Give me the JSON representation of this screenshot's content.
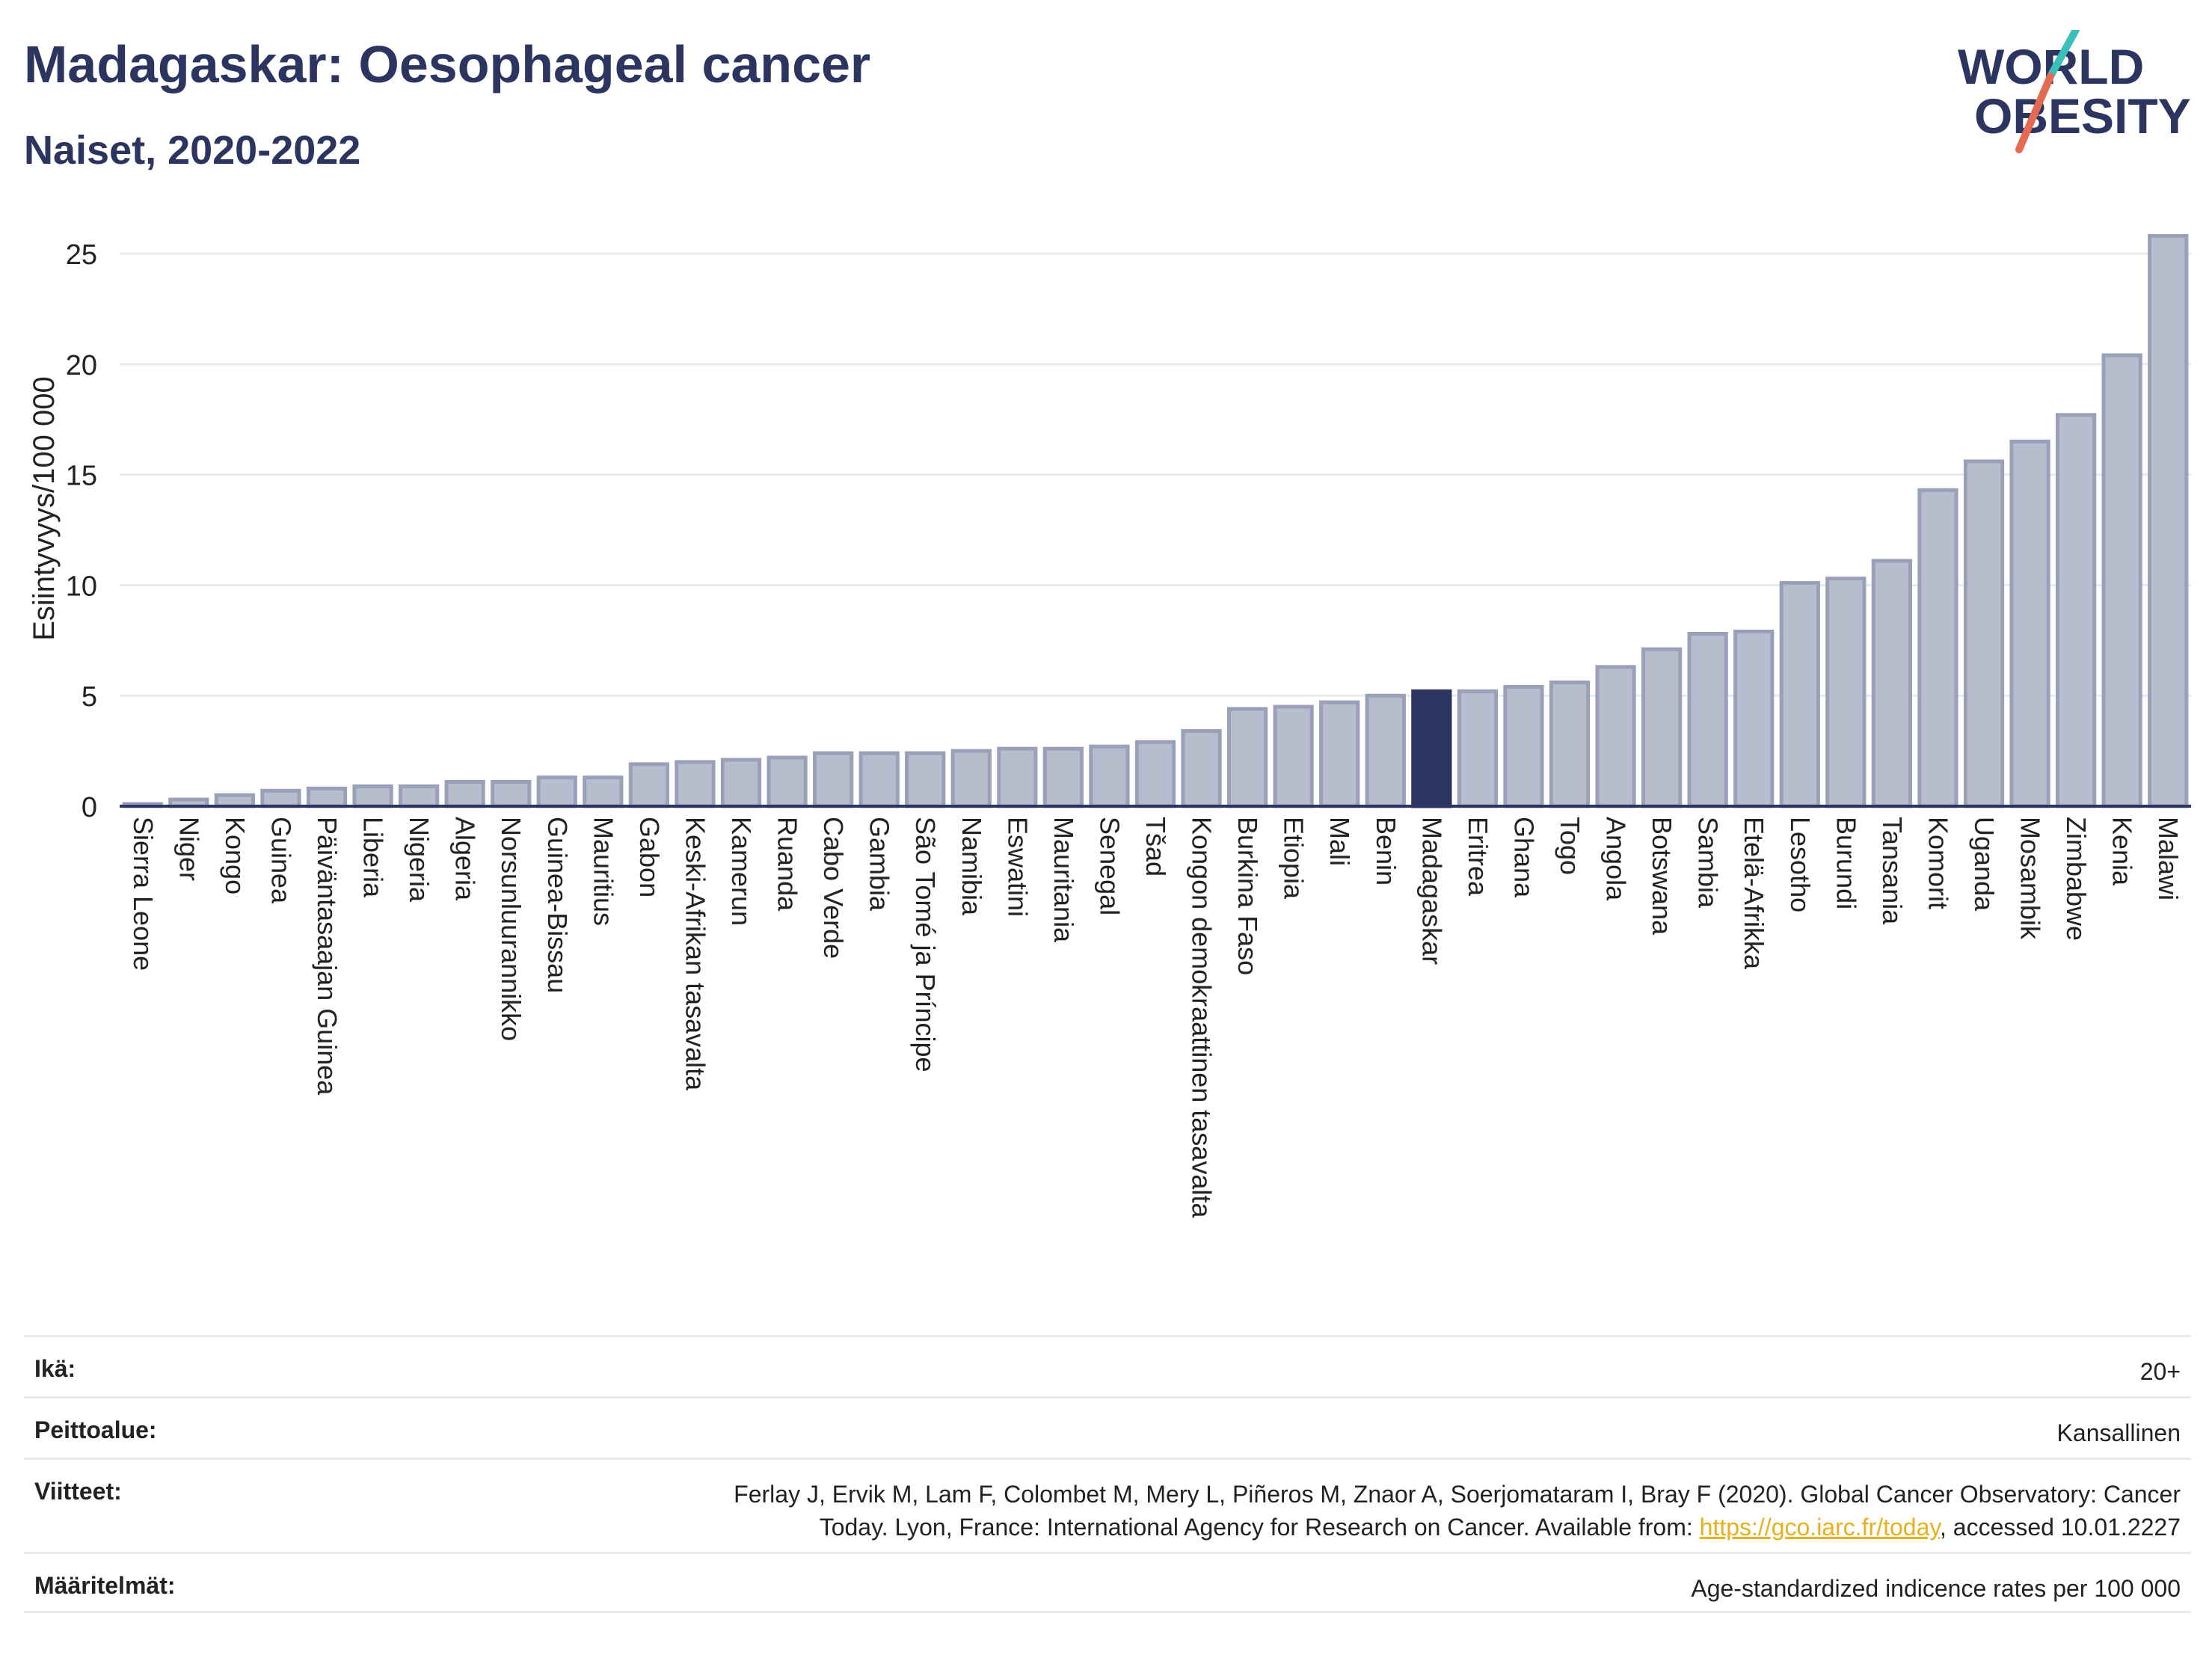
{
  "header": {
    "title": "Madagaskar: Oesophageal cancer",
    "subtitle": "Naiset, 2020-2022"
  },
  "logo": {
    "line1": "WORLD",
    "line2": "OBESITY",
    "colors": {
      "text": "#2c3560",
      "slash_teal": "#3cbfb9",
      "slash_coral": "#e56a54"
    }
  },
  "chart_data": {
    "type": "bar",
    "ylabel": "Esiintyvyys/100 000",
    "ylim": [
      0,
      27
    ],
    "yticks": [
      0,
      5,
      10,
      15,
      20,
      25
    ],
    "grid": true,
    "highlight": "Madagaskar",
    "colors": {
      "bar": "#b8bdcd",
      "bar_border": "#9aa0b8",
      "highlight": "#2c3560"
    },
    "categories": [
      "Sierra Leone",
      "Niger",
      "Kongo",
      "Guinea",
      "Päiväntasaajan Guinea",
      "Liberia",
      "Nigeria",
      "Algeria",
      "Norsunluurannikko",
      "Guinea-Bissau",
      "Mauritius",
      "Gabon",
      "Keski-Afrikan tasavalta",
      "Kamerun",
      "Ruanda",
      "Cabo Verde",
      "Gambia",
      "São Tomé ja Príncipe",
      "Namibia",
      "Eswatini",
      "Mauritania",
      "Senegal",
      "Tšad",
      "Kongon demokraattinen tasavalta",
      "Burkina Faso",
      "Etiopia",
      "Mali",
      "Benin",
      "Madagaskar",
      "Eritrea",
      "Ghana",
      "Togo",
      "Angola",
      "Botswana",
      "Sambia",
      "Etelä-Afrikka",
      "Lesotho",
      "Burundi",
      "Tansania",
      "Komorit",
      "Uganda",
      "Mosambik",
      "Zimbabwe",
      "Kenia",
      "Malawi"
    ],
    "values": [
      0.1,
      0.3,
      0.5,
      0.7,
      0.8,
      0.9,
      0.9,
      1.1,
      1.1,
      1.3,
      1.3,
      1.9,
      2.0,
      2.1,
      2.2,
      2.4,
      2.4,
      2.4,
      2.5,
      2.6,
      2.6,
      2.7,
      2.9,
      3.4,
      4.4,
      4.5,
      4.7,
      5.0,
      5.2,
      5.2,
      5.4,
      5.6,
      6.3,
      7.1,
      7.8,
      7.9,
      10.1,
      10.3,
      11.1,
      14.3,
      15.6,
      16.5,
      17.7,
      20.4,
      25.8
    ]
  },
  "info": [
    {
      "label": "Ikä:",
      "value": "20+"
    },
    {
      "label": "Peittoalue:",
      "value": "Kansallinen"
    },
    {
      "label": "Viitteet:",
      "value_line1": "Ferlay J, Ervik M, Lam F, Colombet M, Mery L, Piñeros M, Znaor A, Soerjomataram I, Bray F (2020). Global Cancer Observatory: Cancer",
      "value_line2_pre": "Today. Lyon, France: International Agency for Research on Cancer. Available from: ",
      "link": "https://gco.iarc.fr/today",
      "value_line2_post": ", accessed 10.01.2227"
    },
    {
      "label": "Määritelmät:",
      "value": "Age-standardized indicence rates per 100 000"
    }
  ]
}
